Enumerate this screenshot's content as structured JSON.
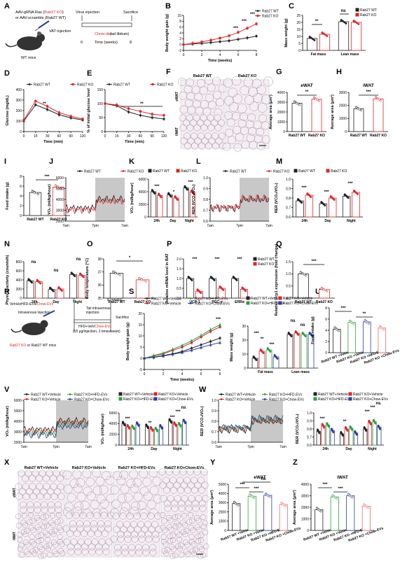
{
  "colors": {
    "wt": "#222222",
    "ko": "#d8262b",
    "hfd": "#2e9e3e",
    "chow": "#2b3d9e",
    "ko_ev": "#ea6b6b",
    "histo": "#e6d9e3",
    "shade": "#c8c8c8"
  },
  "panels": [
    "A",
    "B",
    "C",
    "D",
    "E",
    "F",
    "G",
    "H",
    "I",
    "J",
    "K",
    "L",
    "M",
    "N",
    "O",
    "P",
    "Q",
    "R",
    "S",
    "T",
    "U",
    "V",
    "W",
    "X",
    "Y",
    "Z"
  ],
  "panel_a": {
    "line1": "AAV-gRNA Ras (",
    "line1_red": "Rab27 KO",
    "line1_end": ")",
    "line2": "or AAV-scramble (Rab27 WT)",
    "vat": "VAT injection",
    "virus": "Virus injection",
    "sacrifice": "Sacrifice",
    "diet": "Chow-diet",
    "diet2": "(ad libitum)",
    "time": "Time (weeks)",
    "t0": "0",
    "t8": "8",
    "mice": "WT mice"
  },
  "panel_r": {
    "line1": "VehicleHFD-EVs/",
    "line1_red": "Chow-EVs",
    "inj": "Intravenous injection",
    "tail": "Tail intravenous",
    "tail2": "injection",
    "hfd": "HFD+Veh/",
    "hfd_red": "Chow-EVs",
    "dose": "(15 μg/injection, 2 times/week)",
    "t0": "0",
    "t8": "8 (weeks)",
    "sacrifice": "Sacrifice",
    "bottom_red": "Rab27 KO",
    "bottom": " or Rab27 WT mice"
  },
  "legend": {
    "wt": "Rab27 WT",
    "ko": "Rab27 KO"
  },
  "legend4": {
    "wv": "Rab27 WT+Vehicle",
    "kv": "Rab27 KO+Vehicle",
    "kh": "Rab27 KO+HFD-EVs",
    "kc": "Rab27 KO+Chow-EVs"
  },
  "legend_s": {
    "wv": "Rab27 WT+Vehicle",
    "kv": "Rab27 KO+Vehicle",
    "kh": "Rab27 KO+HFD-EVs",
    "kc": "Rab27 KO+Chow-EVs"
  },
  "legend_t": {
    "wv": "Rab27 WT+Vehicle",
    "kv": "Rab27 KO+Vehicle",
    "kh": "Rab27 KO+HFD-EVs",
    "kc": "Rab27 KO+Chow-EVs"
  },
  "histology_f": {
    "wt": "Rab27 WT",
    "ko": "Rab27 KO",
    "row1": "eWAT",
    "row2": "iWAT"
  },
  "histology_x": {
    "c1": "Rab27 WT+Vehicle",
    "c2": "Rab27 KO+Vehicle",
    "c3": "Rab27 KO+HFD-EVs",
    "c4": "Rab27 KO+Chow-EVs",
    "row1": "eWAT",
    "row2": "iWAT"
  },
  "chart_data": [
    {
      "panel": "B",
      "type": "line",
      "ylabel": "Body weight gain (g)",
      "xlabel": "Time (weeks)",
      "xlim": [
        0,
        8
      ],
      "ylim": [
        -2,
        10
      ],
      "yticks": [
        -2,
        0,
        2,
        4,
        6,
        8,
        10
      ],
      "xticks": [
        0,
        2,
        4,
        6,
        8
      ],
      "series": [
        {
          "name": "Rab27 WT",
          "x": [
            0,
            1,
            2,
            3,
            4,
            5,
            6,
            7,
            8
          ],
          "values": [
            0,
            0.2,
            0.4,
            0.7,
            1.0,
            1.3,
            1.8,
            2.3,
            2.9
          ]
        },
        {
          "name": "Rab27 KO",
          "x": [
            0,
            1,
            2,
            3,
            4,
            5,
            6,
            7,
            8
          ],
          "values": [
            0,
            0.4,
            0.9,
            1.5,
            2.2,
            3.0,
            4.2,
            5.6,
            7.1
          ]
        }
      ],
      "annotations": [
        "***",
        "***",
        "***"
      ]
    },
    {
      "panel": "C",
      "type": "bar",
      "ylabel": "Mass weight (g)",
      "categories": [
        "Fat mass",
        "Lean mass"
      ],
      "ylim": [
        0,
        25
      ],
      "yticks": [
        0,
        5,
        10,
        15,
        20,
        25
      ],
      "series": [
        {
          "name": "Rab27 WT",
          "values": [
            8.5,
            20.5
          ]
        },
        {
          "name": "Rab27 KO",
          "values": [
            11.5,
            20.0
          ]
        }
      ],
      "annotations": [
        "**",
        "ns"
      ]
    },
    {
      "panel": "D",
      "type": "line",
      "ylabel": "Glucose (mg/dL)",
      "xlabel": "Time (min)",
      "xticks": [
        0,
        15,
        30,
        60,
        90,
        120
      ],
      "ylim": [
        0,
        400
      ],
      "yticks": [
        0,
        100,
        200,
        300,
        400
      ],
      "series": [
        {
          "name": "Rab27 WT",
          "x": [
            0,
            15,
            30,
            60,
            90,
            120
          ],
          "values": [
            100,
            255,
            210,
            160,
            130,
            110
          ]
        },
        {
          "name": "Rab27 KO",
          "x": [
            0,
            15,
            30,
            60,
            90,
            120
          ],
          "values": [
            110,
            290,
            240,
            180,
            145,
            120
          ]
        }
      ],
      "annotations": [
        "**"
      ]
    },
    {
      "panel": "E",
      "type": "line",
      "ylabel": "% of initial glucose level",
      "xlabel": "Time (min)",
      "xticks": [
        0,
        15,
        30,
        60,
        90,
        120
      ],
      "ylim": [
        0,
        150
      ],
      "yticks": [
        0,
        50,
        100,
        150
      ],
      "series": [
        {
          "name": "Rab27 WT",
          "x": [
            0,
            15,
            30,
            60,
            90,
            120
          ],
          "values": [
            100,
            92,
            70,
            58,
            50,
            45
          ]
        },
        {
          "name": "Rab27 KO",
          "x": [
            0,
            15,
            30,
            60,
            90,
            120
          ],
          "values": [
            100,
            95,
            82,
            72,
            62,
            58
          ]
        }
      ],
      "annotations": [
        "**"
      ]
    },
    {
      "panel": "G",
      "type": "bar",
      "title": "eWAT",
      "ylabel": "Average area (μm²)",
      "categories": [
        "Rab27 WT",
        "Rab27 KO"
      ],
      "ylim": [
        0,
        4000
      ],
      "yticks": [
        0,
        1000,
        2000,
        3000,
        4000
      ],
      "values": [
        2900,
        3300
      ],
      "annotations": [
        "**"
      ]
    },
    {
      "panel": "H",
      "type": "bar",
      "title": "iWAT",
      "ylabel": "Average area (μm²)",
      "categories": [
        "Rab27 WT",
        "Rab27 KO"
      ],
      "ylim": [
        0,
        3000
      ],
      "yticks": [
        0,
        1000,
        2000,
        3000
      ],
      "values": [
        1750,
        2500
      ],
      "annotations": [
        "***"
      ]
    },
    {
      "panel": "I",
      "type": "bar",
      "ylabel": "Food intake (g)",
      "categories": [
        "Rab27 WT",
        "Rab27 KO"
      ],
      "ylim": [
        0,
        8
      ],
      "yticks": [
        0,
        2,
        4,
        6,
        8
      ],
      "values": [
        4.7,
        5.8
      ],
      "annotations": [
        "***"
      ]
    },
    {
      "panel": "K",
      "type": "bar",
      "ylabel": "VO₂ (ml/kg/hour)",
      "categories": [
        "24h",
        "Day",
        "Night"
      ],
      "ylim": [
        0,
        6000
      ],
      "yticks": [
        0,
        2000,
        4000,
        6000
      ],
      "series": [
        {
          "name": "Rab27 WT",
          "values": [
            4000,
            3500,
            4600
          ]
        },
        {
          "name": "Rab27 KO",
          "values": [
            3400,
            3000,
            3900
          ]
        }
      ],
      "annotations": [
        "***",
        "*",
        "***"
      ]
    },
    {
      "panel": "M",
      "type": "bar",
      "ylabel": "RER (VCO₂/VO₂)",
      "categories": [
        "24h",
        "Day",
        "Night"
      ],
      "ylim": [
        0.6,
        1.0
      ],
      "yticks": [
        0.6,
        0.7,
        0.8,
        0.9,
        1.0
      ],
      "series": [
        {
          "name": "Rab27 WT",
          "values": [
            0.77,
            0.74,
            0.82
          ]
        },
        {
          "name": "Rab27 KO",
          "values": [
            0.83,
            0.8,
            0.86
          ]
        }
      ],
      "annotations": [
        "***",
        "***",
        "***"
      ]
    },
    {
      "panel": "N",
      "type": "bar",
      "ylabel": "Physical activity (counts/h)",
      "categories": [
        "24h",
        "Day",
        "Night"
      ],
      "ylim": [
        0,
        800
      ],
      "yticks": [
        0,
        200,
        400,
        600,
        800
      ],
      "series": [
        {
          "name": "Rab27 WT",
          "values": [
            380,
            190,
            520
          ]
        },
        {
          "name": "Rab27 KO",
          "values": [
            360,
            200,
            500
          ]
        }
      ],
      "annotations": [
        "ns",
        "ns",
        "ns"
      ]
    },
    {
      "panel": "O",
      "type": "bar",
      "ylabel": "Body temperature (°C)",
      "categories": [
        "Rab27 WT",
        "Rab27 KO"
      ],
      "ylim": [
        35,
        38
      ],
      "yticks": [
        35,
        36,
        37,
        38
      ],
      "values": [
        36.9,
        36.4
      ],
      "annotations": [
        "*"
      ]
    },
    {
      "panel": "P",
      "type": "bar",
      "ylabel": "Relative mRNA level in BAT",
      "categories": [
        "UCP-1",
        "PGC-α",
        "ERRα"
      ],
      "ylim": [
        0,
        2.0
      ],
      "yticks": [
        0,
        0.5,
        1.0,
        1.5,
        2.0
      ],
      "series": [
        {
          "name": "Rab27 WT",
          "values": [
            1.0,
            1.0,
            1.0
          ]
        },
        {
          "name": "Rab27 KO",
          "values": [
            0.35,
            0.5,
            0.45
          ]
        }
      ],
      "annotations": [
        "***",
        "***",
        "***"
      ]
    },
    {
      "panel": "Q",
      "type": "bar",
      "ylabel": "Relative Ucp1 expression (fold change)",
      "categories": [
        "Rab27 WT",
        "Rab27 KO"
      ],
      "ylim": [
        0,
        1.5
      ],
      "yticks": [
        0,
        0.5,
        1.0,
        1.5
      ],
      "values": [
        1.0,
        0.35
      ],
      "annotations": [
        "***"
      ]
    },
    {
      "panel": "S",
      "type": "line",
      "ylabel": "Body weight gain (g)",
      "xlabel": "Time (weeks)",
      "xlim": [
        0,
        8
      ],
      "ylim": [
        -5,
        20
      ],
      "yticks": [
        -5,
        0,
        5,
        10,
        15,
        20
      ],
      "xticks": [
        0,
        2,
        4,
        6,
        8
      ],
      "series": [
        {
          "name": "Rab27 WT+Vehicle",
          "x": [
            0,
            1,
            2,
            3,
            4,
            5,
            6,
            7,
            8
          ],
          "values": [
            0,
            0.5,
            1.2,
            2,
            3,
            4.5,
            6,
            7.5,
            9
          ]
        },
        {
          "name": "Rab27 KO+Vehicle",
          "x": [
            0,
            1,
            2,
            3,
            4,
            5,
            6,
            7,
            8
          ],
          "values": [
            0,
            1,
            2,
            3.5,
            5,
            7,
            9.5,
            12,
            14
          ]
        },
        {
          "name": "Rab27 KO+HFD-EVs",
          "x": [
            0,
            1,
            2,
            3,
            4,
            5,
            6,
            7,
            8
          ],
          "values": [
            0,
            1.2,
            2.3,
            4,
            5.8,
            7.8,
            10.2,
            12.8,
            15
          ]
        },
        {
          "name": "Rab27 KO+Chow-EVs",
          "x": [
            0,
            1,
            2,
            3,
            4,
            5,
            6,
            7,
            8
          ],
          "values": [
            0,
            0.4,
            1,
            1.8,
            2.6,
            3.6,
            4.8,
            6,
            7
          ]
        }
      ],
      "annotations": [
        "***"
      ]
    },
    {
      "panel": "T",
      "type": "bar",
      "ylabel": "Mass weight (g)",
      "categories": [
        "Fat mass",
        "Lean mass"
      ],
      "ylim": [
        0,
        30
      ],
      "yticks": [
        0,
        10,
        20,
        30
      ],
      "series": [
        {
          "name": "Rab27 WT+Vehicle",
          "values": [
            7,
            24
          ]
        },
        {
          "name": "Rab27 KO+Vehicle",
          "values": [
            12,
            25
          ]
        },
        {
          "name": "Rab27 KO+HFD-EVs",
          "values": [
            13,
            24
          ]
        },
        {
          "name": "Rab27 KO+Chow-EVs",
          "values": [
            8,
            24
          ]
        }
      ],
      "annotations": [
        "***",
        "**",
        "***",
        "ns",
        "ns"
      ]
    },
    {
      "panel": "U",
      "type": "bar",
      "ylabel": "Food intake (g)",
      "categories": [
        "Rab27 WT +Vehicle",
        "Rab27 KO +Vehicle",
        "Rab27 KO +HFD-EVs",
        "Rab27 KO +Chow-EVs"
      ],
      "ylim": [
        0,
        8
      ],
      "yticks": [
        0,
        2,
        4,
        6,
        8
      ],
      "values": [
        4.2,
        5.4,
        5.5,
        4.4
      ],
      "annotations": [
        "***",
        "**"
      ]
    },
    {
      "panel": "V",
      "type": "bar",
      "ylabel": "VO₂ (ml/kg/hour)",
      "categories": [
        "24h",
        "Day",
        "Night"
      ],
      "ylim": [
        0,
        6000
      ],
      "yticks": [
        0,
        2000,
        4000,
        6000
      ],
      "series": [
        {
          "name": "Rab27 WT+Vehicle",
          "values": [
            4000,
            3500,
            4500
          ]
        },
        {
          "name": "Rab27 KO+Vehicle",
          "values": [
            3400,
            3000,
            3900
          ]
        },
        {
          "name": "Rab27 KO+HFD-EVs",
          "values": [
            3300,
            2900,
            3800
          ]
        },
        {
          "name": "Rab27 KO+Chow-EVs",
          "values": [
            3900,
            3400,
            4400
          ]
        }
      ],
      "annotations": [
        "***",
        "**",
        "***",
        "***",
        "ns"
      ]
    },
    {
      "panel": "W",
      "type": "bar",
      "ylabel": "RER (VCO₂/VO₂)",
      "categories": [
        "24h",
        "Day",
        "Night"
      ],
      "ylim": [
        0.6,
        1.0
      ],
      "yticks": [
        0.6,
        0.7,
        0.8,
        0.9,
        1.0
      ],
      "series": [
        {
          "name": "Rab27 WT+Vehicle",
          "values": [
            0.77,
            0.74,
            0.8
          ]
        },
        {
          "name": "Rab27 KO+Vehicle",
          "values": [
            0.84,
            0.8,
            0.88
          ]
        },
        {
          "name": "Rab27 KO+HFD-EVs",
          "values": [
            0.85,
            0.81,
            0.89
          ]
        },
        {
          "name": "Rab27 KO+Chow-EVs",
          "values": [
            0.78,
            0.75,
            0.82
          ]
        }
      ],
      "annotations": [
        "***",
        "**",
        "***",
        "***",
        "ns"
      ]
    },
    {
      "panel": "Y",
      "type": "bar",
      "title": "eWAT",
      "ylabel": "Average area (μm²)",
      "categories": [
        "Rab27 WT +Vehicle",
        "Rab27 KO +Vehicle",
        "Rab27 KO +HFD-EVs",
        "Rab27 KO +Chow-EVs"
      ],
      "ylim": [
        0,
        5000
      ],
      "yticks": [
        0,
        1000,
        2000,
        3000,
        4000,
        5000
      ],
      "values": [
        2900,
        3700,
        3800,
        2800
      ],
      "annotations": [
        "***",
        "***",
        "ns"
      ]
    },
    {
      "panel": "Z",
      "type": "bar",
      "title": "iWAT",
      "ylabel": "Average area (μm²)",
      "categories": [
        "Rab27 WT +Vehicle",
        "Rab27 KO +Vehicle",
        "Rab27 KO +HFD-EVs",
        "Rab27 KO +Chow-EVs"
      ],
      "ylim": [
        0,
        4000
      ],
      "yticks": [
        0,
        1000,
        2000,
        3000,
        4000
      ],
      "values": [
        1800,
        2900,
        3000,
        2100
      ],
      "annotations": [
        "***",
        "***"
      ]
    },
    {
      "panel": "J",
      "type": "line",
      "ylabel": "VO₂ (ml/kg/hour)",
      "xticks_labels": [
        "7am",
        "7pm",
        "7am"
      ],
      "ylim": [
        2000,
        6000
      ],
      "yticks": [
        2000,
        3000,
        4000,
        5000,
        6000
      ],
      "series": [
        {
          "name": "Rab27 WT"
        },
        {
          "name": "Rab27 KO"
        }
      ]
    },
    {
      "panel": "L",
      "type": "line",
      "ylabel": "RER (VCO₂/VO₂)",
      "xticks_labels": [
        "7am",
        "7pm",
        "7am"
      ],
      "ylim": [
        0.6,
        1.0
      ],
      "yticks": [
        0.6,
        0.7,
        0.8,
        0.9,
        1.0
      ],
      "series": [
        {
          "name": "Rab27 WT"
        },
        {
          "name": "Rab27 KO"
        }
      ]
    },
    {
      "panel": "V_trace",
      "type": "line",
      "ylabel": "VO₂ (ml/kg/hour)",
      "xticks_labels": [
        "7am",
        "7pm",
        "7am"
      ],
      "ylim": [
        2000,
        6000
      ],
      "yticks": [
        2000,
        3000,
        4000,
        5000,
        6000
      ]
    },
    {
      "panel": "W_trace",
      "type": "line",
      "ylabel": "RER (VCO₂/VO₂)",
      "xticks_labels": [
        "7am",
        "7pm",
        "7am"
      ],
      "ylim": [
        0.6,
        1.0
      ],
      "yticks": [
        0.6,
        0.7,
        0.8,
        0.9,
        1.0
      ]
    }
  ]
}
